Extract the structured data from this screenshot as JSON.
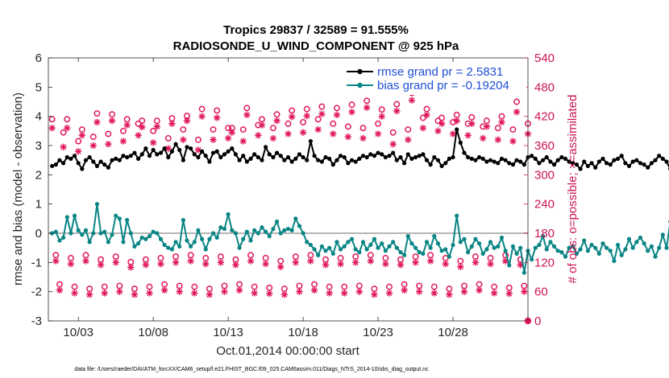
{
  "chart_data": {
    "type": "line",
    "title": "Tropics 29837 / 32589 = 91.555%",
    "subtitle": "RADIOSONDE_U_WIND_COMPONENT @ 925 hPa",
    "xlabel": "Oct.01,2014 00:00:00 start",
    "ylabel": "rmse and bias (model - observation)",
    "y2label": "# of obs: o=possible; ×=assimilated",
    "footnote": "data file: /Users/raeder/DAI/ATM_forcXX/CAM6_setup/f.e21.FHIST_BGC.f09_025.CAM6assim.011/Diags_NTrS_2014-10/obs_diag_output.nc",
    "xlim": [
      1.0,
      33.0
    ],
    "ylim": [
      -3,
      6
    ],
    "y2lim": [
      0,
      540
    ],
    "x_ticks": [
      3,
      8,
      13,
      18,
      23,
      28
    ],
    "x_tick_labels": [
      "10/03",
      "10/08",
      "10/13",
      "10/18",
      "10/23",
      "10/28"
    ],
    "y_ticks": [
      -3,
      -2,
      -1,
      0,
      1,
      2,
      3,
      4,
      5,
      6
    ],
    "y_tick_labels": [
      "-3",
      "-2",
      "-1",
      "0",
      "1",
      "2",
      "3",
      "4",
      "5",
      "6"
    ],
    "y2_ticks": [
      0,
      60,
      120,
      180,
      240,
      300,
      360,
      420,
      480,
      540
    ],
    "y2_tick_labels": [
      "0",
      "60",
      "120",
      "180",
      "240",
      "300",
      "360",
      "420",
      "480",
      "540"
    ],
    "zero_line": true,
    "legend_position": "top-right",
    "colors": {
      "rmse": "#000000",
      "bias": "#0a8585",
      "obs": "#e0185a",
      "right_axis": "#cc1456",
      "zero": "#b5b5b5",
      "legend_text": "#1f4fd6"
    },
    "series": [
      {
        "name": "rmse grand pr = 2.5831",
        "axis": "left",
        "style": "line-dot",
        "x_start": 1.25,
        "x_step": 0.25,
        "values": [
          2.3,
          2.35,
          2.5,
          2.4,
          2.6,
          2.55,
          2.65,
          2.4,
          2.2,
          2.5,
          2.6,
          2.45,
          2.3,
          2.45,
          2.35,
          2.25,
          2.5,
          2.55,
          2.5,
          2.65,
          2.6,
          2.65,
          2.75,
          2.55,
          2.7,
          2.9,
          2.65,
          2.85,
          2.7,
          2.75,
          2.9,
          2.6,
          2.8,
          3.05,
          2.85,
          2.5,
          2.95,
          2.9,
          2.7,
          2.6,
          2.8,
          2.65,
          2.45,
          2.75,
          2.8,
          2.6,
          2.7,
          2.8,
          2.9,
          2.7,
          2.5,
          2.65,
          2.45,
          2.55,
          2.7,
          2.6,
          2.5,
          2.95,
          2.7,
          2.6,
          2.75,
          2.65,
          2.5,
          2.6,
          2.45,
          2.55,
          2.7,
          2.6,
          2.5,
          3.15,
          2.65,
          2.5,
          2.45,
          2.6,
          2.55,
          2.35,
          2.5,
          2.65,
          2.6,
          2.4,
          2.5,
          2.45,
          2.55,
          2.65,
          2.6,
          2.7,
          2.65,
          2.75,
          2.7,
          2.6,
          2.65,
          2.75,
          2.5,
          2.6,
          2.4,
          2.7,
          2.55,
          2.6,
          2.65,
          2.7,
          2.5,
          2.35,
          2.6,
          2.5,
          2.3,
          2.4,
          2.55,
          2.6,
          3.55,
          3.1,
          2.75,
          2.6,
          2.55,
          2.5,
          2.6,
          2.55,
          2.45,
          2.5,
          2.45,
          2.4,
          2.55,
          2.5,
          2.4,
          2.35,
          2.5,
          2.45,
          2.35,
          2.6,
          2.65,
          2.55,
          2.4,
          2.5,
          2.6,
          2.45,
          2.35,
          2.5,
          2.6,
          2.55,
          2.45,
          2.4,
          2.35,
          2.2,
          2.45,
          2.3,
          2.4,
          2.25,
          2.45,
          2.55,
          2.4,
          2.35,
          2.5,
          2.55,
          2.65,
          2.4,
          2.3,
          2.45,
          2.5,
          2.4,
          2.35,
          2.25,
          2.4,
          2.5,
          2.65,
          2.55,
          2.45,
          2.2,
          2.3,
          2.5,
          2.35,
          2.25,
          2.45,
          2.35,
          2.3,
          2.4,
          2.35,
          2.2,
          2.35,
          2.3,
          2.25,
          1.95,
          2.35,
          2.1,
          2.3,
          2.05,
          2.2,
          2.1,
          2.0
        ]
      },
      {
        "name": "bias grand pr = -0.19204",
        "axis": "left",
        "style": "line-dot",
        "x_start": 1.25,
        "x_step": 0.25,
        "values": [
          0.0,
          0.05,
          -0.25,
          -0.15,
          0.55,
          0.0,
          0.6,
          0.1,
          -0.05,
          0.1,
          -0.3,
          0.0,
          1.0,
          0.0,
          0.05,
          -0.3,
          -0.05,
          0.6,
          0.5,
          -0.3,
          0.45,
          0.0,
          -0.45,
          -0.35,
          -0.15,
          -0.2,
          -0.1,
          0.05,
          0.0,
          -0.2,
          -0.4,
          -0.5,
          -0.55,
          -0.3,
          -0.45,
          0.45,
          -0.25,
          -0.45,
          -0.3,
          0.1,
          -0.2,
          -0.55,
          -0.2,
          0.0,
          -0.15,
          0.2,
          0.15,
          0.65,
          0.1,
          0.0,
          -0.5,
          -0.2,
          0.05,
          -0.25,
          0.1,
          0.0,
          0.2,
          0.05,
          -0.1,
          0.15,
          0.4,
          0.0,
          0.1,
          0.15,
          0.1,
          0.5,
          0.25,
          0.0,
          -0.3,
          -0.4,
          -0.55,
          -0.75,
          -0.45,
          -0.6,
          -0.5,
          -0.7,
          -0.3,
          -0.55,
          -0.45,
          -0.3,
          -0.2,
          -0.55,
          -0.65,
          -0.3,
          -0.55,
          -0.4,
          -0.2,
          -0.5,
          -0.35,
          -0.6,
          -0.45,
          -0.3,
          -0.5,
          -0.65,
          -0.75,
          -0.1,
          -0.35,
          -0.5,
          -0.65,
          -0.7,
          -0.3,
          -0.5,
          -0.1,
          -0.35,
          -0.6,
          -0.55,
          -0.8,
          -0.4,
          0.6,
          -0.3,
          -0.2,
          -0.65,
          -0.45,
          -0.2,
          -0.35,
          -0.7,
          -0.55,
          -0.3,
          -0.5,
          -0.45,
          -0.15,
          -0.6,
          -1.1,
          -0.45,
          -0.7,
          -0.5,
          -1.35,
          -0.6,
          -0.9,
          -0.5,
          -0.4,
          -0.1,
          -0.55,
          -0.3,
          -0.45,
          -0.6,
          -0.65,
          -0.8,
          -0.5,
          -0.45,
          -0.7,
          -0.55,
          -0.25,
          -0.6,
          -0.4,
          -0.5,
          -0.7,
          -0.35,
          -0.5,
          -0.6,
          -0.95,
          -0.4,
          -0.75,
          -0.55,
          -0.2,
          -0.5,
          -0.3,
          -0.15,
          -0.35,
          -0.6,
          -0.45,
          -0.8,
          -0.5,
          -0.05,
          -0.5,
          0.4,
          -0.3,
          -0.15,
          -0.55,
          -0.2,
          -0.75,
          0.4,
          -0.1,
          -0.35,
          -0.55,
          -0.1,
          -0.3,
          -0.25,
          -0.25,
          -0.5,
          0.05,
          0.8
        ]
      },
      {
        "name": "obs possible (o), 0Z-cycle group",
        "axis": "right",
        "style": "circle",
        "x_start": 1.25,
        "x_step": 1.0,
        "values": [
          414,
          414,
          393,
          426,
          424,
          414,
          411,
          411,
          416,
          421,
          435,
          432,
          396,
          437,
          414,
          424,
          432,
          435,
          440,
          437,
          444,
          452,
          434,
          445,
          468,
          435,
          417,
          423,
          418,
          411,
          420,
          450
        ]
      },
      {
        "name": "obs possible (o), 6Z-cycle group",
        "axis": "right",
        "style": "circle",
        "x_start": 1.5,
        "x_step": 1.0,
        "values": [
          135,
          129,
          135,
          126,
          132,
          121,
          126,
          129,
          132,
          135,
          129,
          132,
          126,
          135,
          129,
          123,
          132,
          135,
          126,
          129,
          132,
          135,
          129,
          126,
          132,
          135,
          129,
          123,
          132,
          129,
          135,
          126
        ]
      },
      {
        "name": "obs possible (o), 12Z-cycle group",
        "axis": "right",
        "style": "circle",
        "x_start": 1.75,
        "x_step": 1.0,
        "values": [
          75,
          70,
          66,
          70,
          72,
          66,
          70,
          75,
          72,
          70,
          66,
          72,
          75,
          70,
          68,
          66,
          72,
          75,
          70,
          70,
          72,
          66,
          70,
          75,
          72,
          70,
          66,
          72,
          75,
          70,
          68,
          72
        ]
      },
      {
        "name": "obs possible (o), 18Z-cycle group",
        "axis": "right",
        "style": "circle",
        "x_start": 2.0,
        "x_step": 1.0,
        "values": [
          387,
          369,
          378,
          384,
          390,
          405,
          390,
          375,
          393,
          372,
          393,
          396,
          393,
          402,
          396,
          405,
          408,
          414,
          405,
          399,
          396,
          405,
          387,
          393,
          417,
          411,
          408,
          405,
          399,
          396,
          393,
          405
        ]
      },
      {
        "name": "obs assimilated (×), 0Z-cycle group",
        "axis": "right",
        "style": "asterisk",
        "x_start": 1.25,
        "x_step": 1.0,
        "values": [
          396,
          396,
          381,
          408,
          411,
          402,
          398,
          399,
          405,
          411,
          420,
          417,
          387,
          423,
          402,
          411,
          419,
          421,
          425,
          423,
          429,
          438,
          420,
          431,
          453,
          423,
          405,
          411,
          405,
          399,
          408,
          429
        ]
      },
      {
        "name": "obs assimilated (×), 6Z-cycle group",
        "axis": "right",
        "style": "asterisk",
        "x_start": 1.5,
        "x_step": 1.0,
        "values": [
          123,
          117,
          123,
          115,
          120,
          110,
          115,
          117,
          120,
          123,
          117,
          120,
          115,
          123,
          117,
          111,
          120,
          123,
          115,
          117,
          120,
          123,
          117,
          115,
          120,
          123,
          117,
          111,
          120,
          117,
          123,
          115
        ]
      },
      {
        "name": "obs assimilated (×), 12Z-cycle group",
        "axis": "right",
        "style": "asterisk",
        "x_start": 1.75,
        "x_step": 1.0,
        "values": [
          63,
          57,
          54,
          57,
          60,
          54,
          57,
          63,
          60,
          57,
          54,
          60,
          63,
          57,
          56,
          54,
          60,
          63,
          57,
          57,
          60,
          54,
          57,
          63,
          60,
          57,
          54,
          60,
          63,
          57,
          56,
          60
        ]
      },
      {
        "name": "obs assimilated (×), 18Z-cycle group",
        "axis": "right",
        "style": "asterisk",
        "x_start": 2.0,
        "x_step": 1.0,
        "values": [
          357,
          348,
          360,
          363,
          369,
          381,
          366,
          354,
          372,
          351,
          372,
          375,
          369,
          381,
          375,
          384,
          387,
          393,
          384,
          378,
          375,
          384,
          363,
          372,
          396,
          390,
          384,
          381,
          375,
          372,
          369,
          384
        ]
      }
    ],
    "extra_points": [
      {
        "name": "obs at final time",
        "axis": "right",
        "style": "circle",
        "x": 33.0,
        "y": 0
      }
    ],
    "legend": [
      {
        "label": "rmse grand pr = 2.5831",
        "series": 0
      },
      {
        "label": "bias grand pr = -0.19204",
        "series": 1
      }
    ]
  }
}
